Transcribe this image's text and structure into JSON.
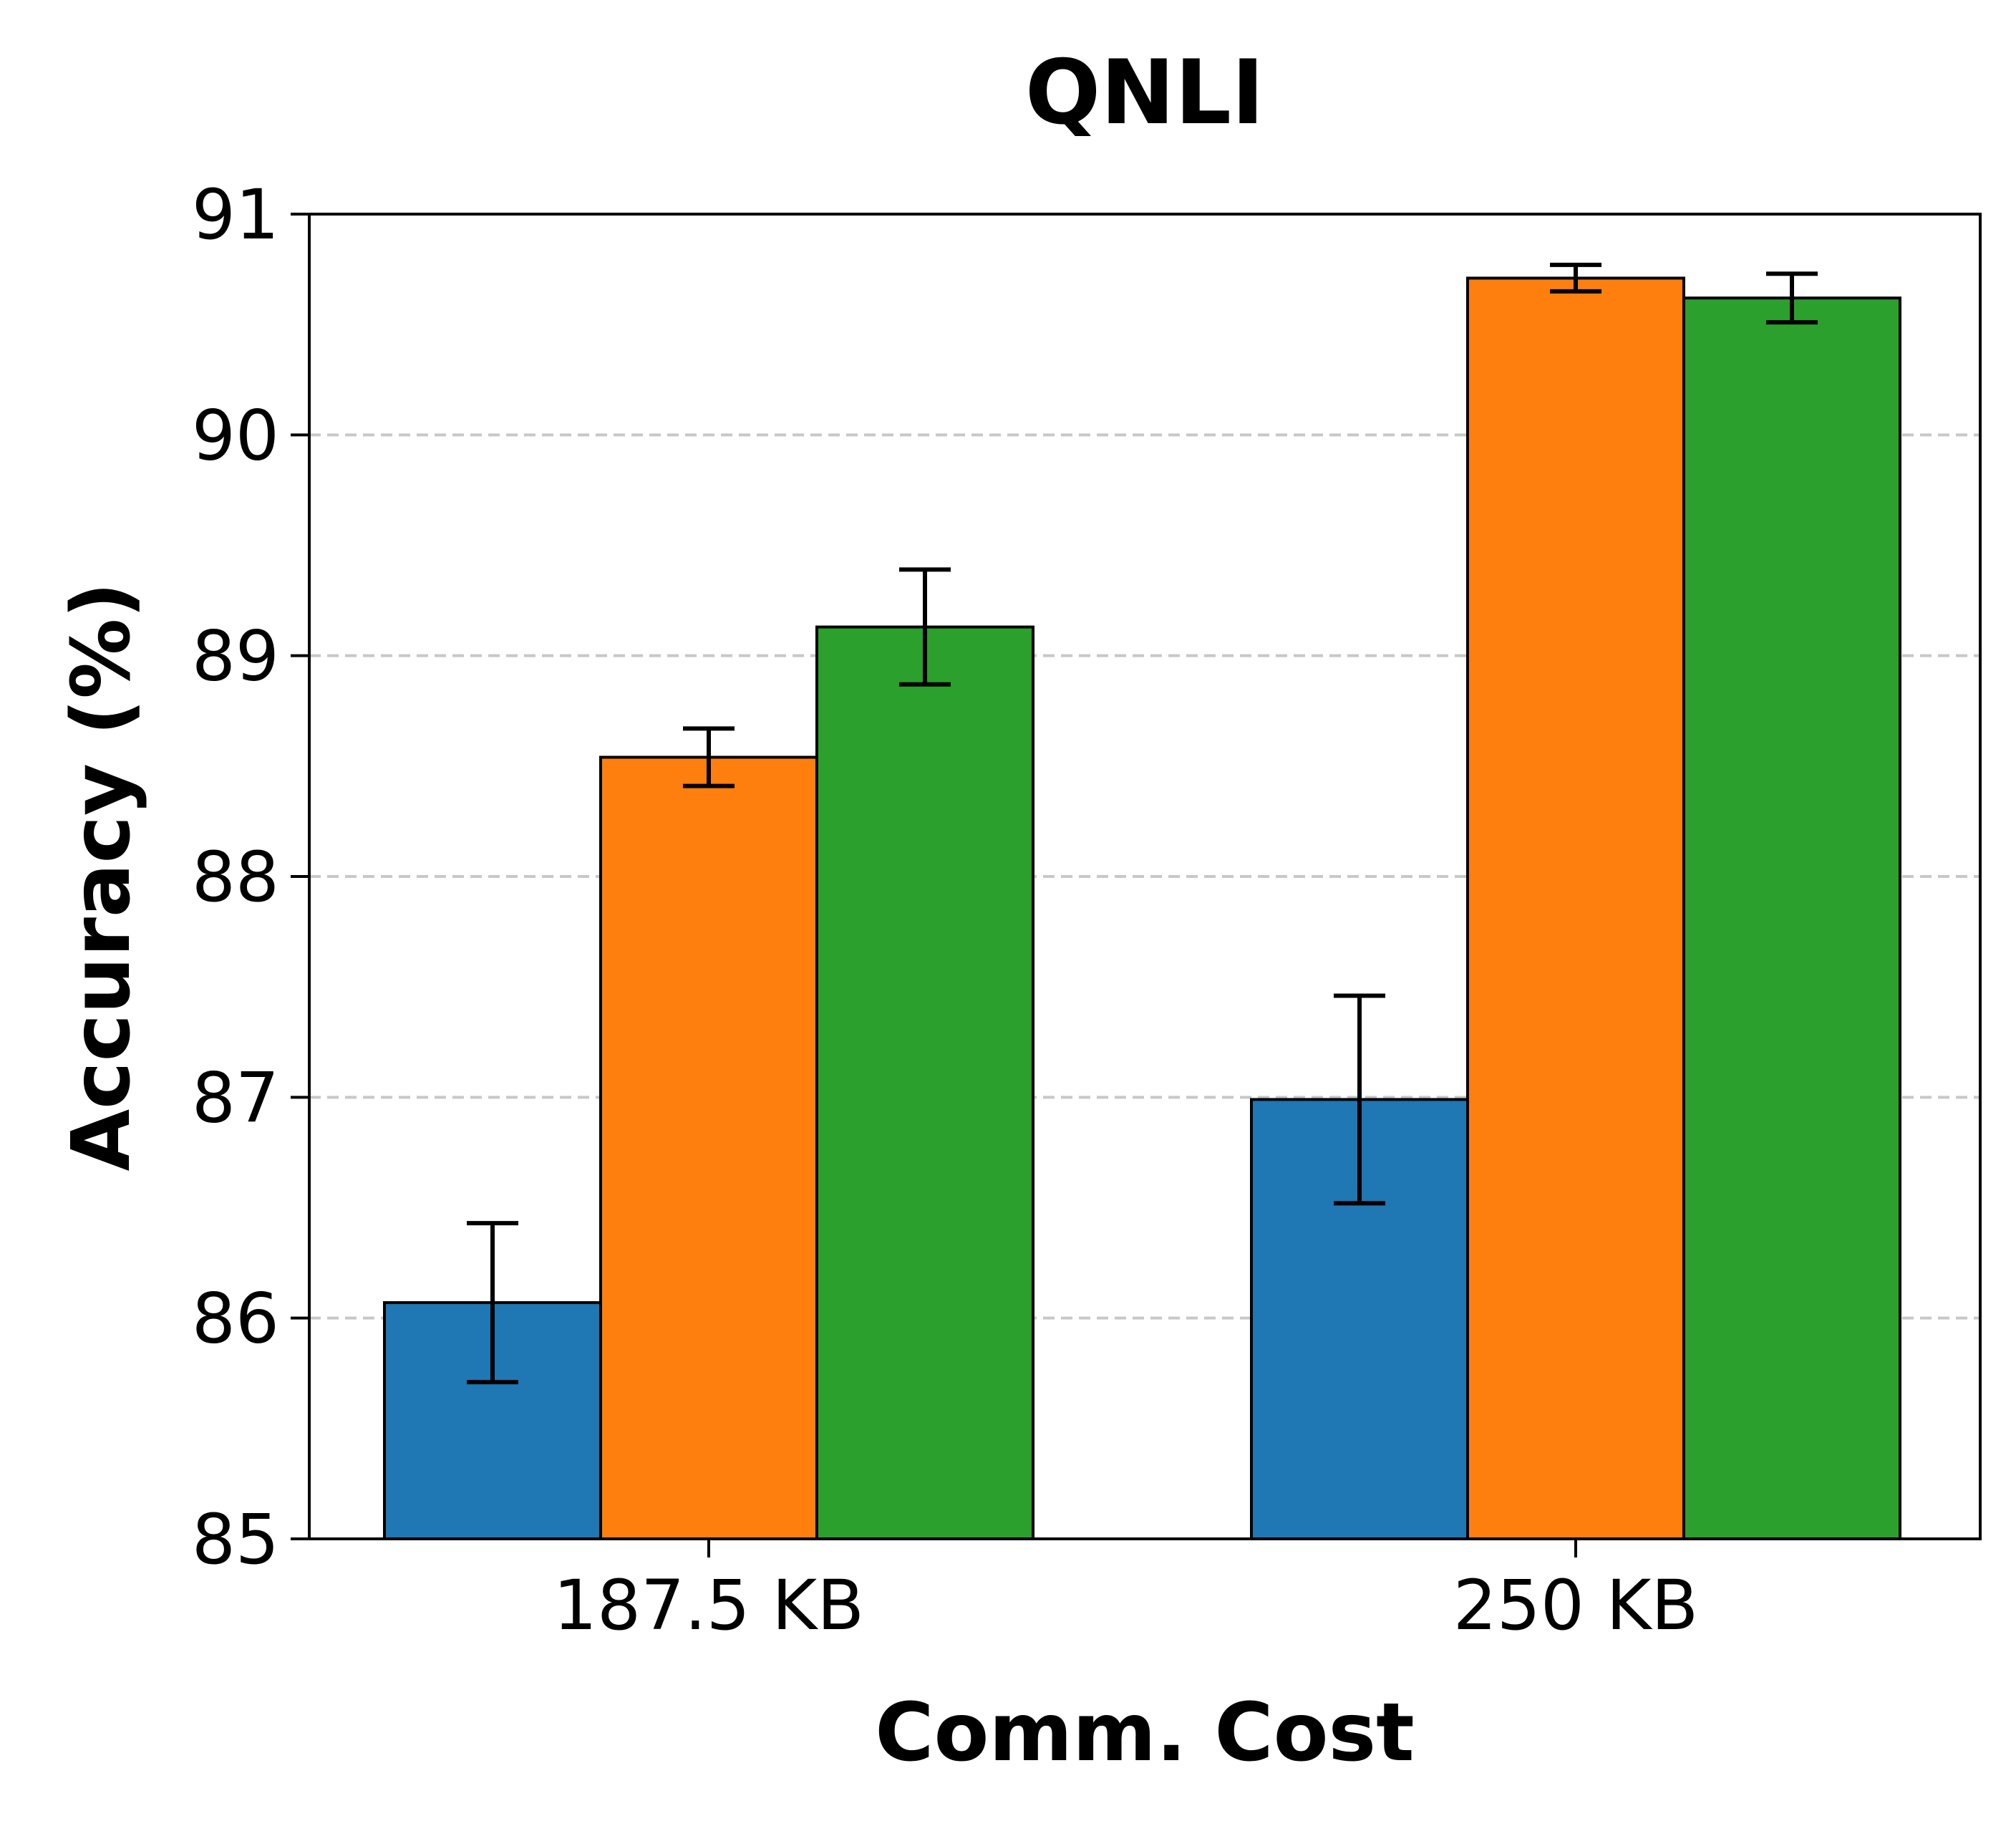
{
  "chart_data": {
    "type": "bar",
    "title": "QNLI",
    "xlabel": "Comm. Cost",
    "ylabel": "Accuracy (%)",
    "ylim": [
      85,
      91
    ],
    "yticks": [
      "85",
      "86",
      "87",
      "88",
      "89",
      "90",
      "91"
    ],
    "grid": "y-dashed",
    "categories": [
      "187.5 KB",
      "250 KB"
    ],
    "series": [
      {
        "color": "#1f77b4",
        "values": [
          86.07,
          86.99
        ],
        "errors": [
          0.36,
          0.47
        ]
      },
      {
        "color": "#ff7f0e",
        "values": [
          88.54,
          90.71
        ],
        "errors": [
          0.13,
          0.06
        ]
      },
      {
        "color": "#2ca02c",
        "values": [
          89.13,
          90.62
        ],
        "errors": [
          0.26,
          0.11
        ]
      }
    ]
  }
}
